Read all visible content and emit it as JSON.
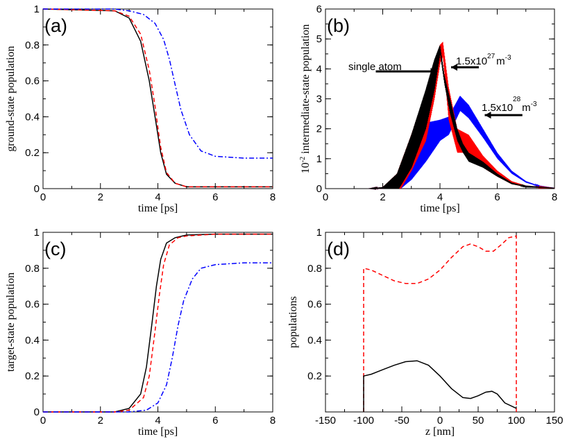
{
  "figure": {
    "panel_labels": [
      "(a)",
      "(b)",
      "(c)",
      "(d)"
    ]
  },
  "chart_data": [
    {
      "panel": "(a)",
      "type": "line",
      "xlabel": "time [ps]",
      "ylabel": "ground-state population",
      "xlim": [
        0,
        8
      ],
      "ylim": [
        0,
        1
      ],
      "xticks": [
        "0",
        "2",
        "4",
        "6",
        "8"
      ],
      "yticks": [
        "0",
        "0.2",
        "0.4",
        "0.6",
        "0.8",
        "1"
      ],
      "grid": false,
      "series": [
        {
          "color": "#000000",
          "dash": "solid",
          "x": [
            0,
            2.5,
            3.0,
            3.4,
            3.7,
            3.9,
            4.0,
            4.1,
            4.3,
            4.6,
            5.0,
            6.0,
            8.0
          ],
          "y": [
            1.0,
            0.99,
            0.95,
            0.82,
            0.6,
            0.4,
            0.3,
            0.2,
            0.08,
            0.03,
            0.01,
            0.01,
            0.01
          ]
        },
        {
          "color": "#ff0000",
          "dash": "dashed",
          "x": [
            0,
            2.5,
            3.0,
            3.4,
            3.7,
            3.9,
            4.0,
            4.1,
            4.3,
            4.6,
            5.0,
            6.0,
            8.0
          ],
          "y": [
            1.0,
            0.99,
            0.96,
            0.86,
            0.66,
            0.46,
            0.34,
            0.23,
            0.09,
            0.03,
            0.01,
            0.01,
            0.01
          ]
        },
        {
          "color": "#0000ff",
          "dash": "dashdot",
          "x": [
            0,
            2.5,
            3.0,
            3.5,
            3.9,
            4.2,
            4.4,
            4.6,
            4.8,
            5.1,
            5.5,
            6.0,
            7.0,
            8.0
          ],
          "y": [
            1.0,
            1.0,
            0.99,
            0.97,
            0.92,
            0.83,
            0.72,
            0.58,
            0.44,
            0.3,
            0.21,
            0.18,
            0.17,
            0.17
          ]
        }
      ]
    },
    {
      "panel": "(b)",
      "type": "line",
      "xlabel": "time [ps]",
      "ylabel": "10-2 intermediate-state population",
      "ylabel_parts": {
        "base": "10",
        "exp": "-2",
        "rest": "intermediate-state population"
      },
      "xlim": [
        0,
        8
      ],
      "ylim": [
        0,
        6
      ],
      "xticks": [
        "0",
        "2",
        "4",
        "6",
        "8"
      ],
      "yticks": [
        "0",
        "1",
        "2",
        "3",
        "4",
        "5",
        "6"
      ],
      "grid": false,
      "series": [
        {
          "color": "#0000ff",
          "x": [
            1.5,
            2.0,
            2.5,
            3.0,
            3.5,
            4.0,
            4.3,
            4.7,
            5.0,
            5.5,
            6.0,
            6.5,
            7.0,
            7.5,
            8.0
          ],
          "y": [
            0,
            0.05,
            0.4,
            1.3,
            2.2,
            2.3,
            2.4,
            3.1,
            2.8,
            2.0,
            1.2,
            0.6,
            0.25,
            0.08,
            0.02
          ],
          "band": [
            0.05,
            0.2,
            0.5,
            1.0,
            1.3,
            0.7,
            0.6,
            0.5,
            0.45,
            0.3,
            0.2,
            0.1,
            0.05,
            0.02,
            0.0
          ]
        },
        {
          "color": "#ff0000",
          "x": [
            1.5,
            2.0,
            2.5,
            3.0,
            3.5,
            3.8,
            4.0,
            4.1,
            4.3,
            4.6,
            5.0,
            5.5,
            6.0,
            6.5,
            7.0,
            8.0
          ],
          "y": [
            0,
            0.05,
            0.5,
            1.8,
            3.2,
            4.2,
            4.8,
            4.9,
            3.4,
            2.0,
            1.8,
            1.1,
            0.6,
            0.25,
            0.1,
            0.02
          ],
          "band": [
            0.05,
            0.2,
            0.7,
            1.2,
            1.6,
            1.2,
            0.6,
            0.5,
            1.1,
            0.8,
            0.6,
            0.4,
            0.2,
            0.1,
            0.05,
            0.0
          ]
        },
        {
          "color": "#000000",
          "x": [
            1.5,
            2.0,
            2.5,
            3.0,
            3.5,
            3.8,
            4.0,
            4.15,
            4.35,
            4.6,
            4.8,
            5.0,
            5.5,
            6.0,
            6.5,
            7.0,
            8.0
          ],
          "y": [
            0,
            0.05,
            0.5,
            1.8,
            3.3,
            4.3,
            4.8,
            3.8,
            3.0,
            2.0,
            1.5,
            1.2,
            0.9,
            0.5,
            0.2,
            0.08,
            0.02
          ],
          "band": [
            0.05,
            0.2,
            0.6,
            1.1,
            1.3,
            1.0,
            0.3,
            0.3,
            0.5,
            0.4,
            0.3,
            0.3,
            0.2,
            0.1,
            0.05,
            0.02,
            0.0
          ]
        }
      ],
      "annotations": [
        {
          "text": "single atom",
          "arrow_from": [
            2.0,
            3.9
          ],
          "arrow_to": [
            3.6,
            3.9
          ]
        },
        {
          "text": "1.5x10",
          "exp": "27",
          "unit": "m",
          "unit_exp": "-3",
          "arrow_from": [
            5.0,
            4.0
          ],
          "arrow_to": [
            4.15,
            4.0
          ]
        },
        {
          "text": "1.5x10",
          "exp": "28",
          "unit": "m",
          "unit_exp": "-3",
          "arrow_from": [
            7.0,
            2.45
          ],
          "arrow_to": [
            5.2,
            2.45
          ]
        }
      ]
    },
    {
      "panel": "(c)",
      "type": "line",
      "xlabel": "time [ps]",
      "ylabel": "target-state population",
      "xlim": [
        0,
        8
      ],
      "ylim": [
        0,
        1
      ],
      "xticks": [
        "0",
        "2",
        "4",
        "6",
        "8"
      ],
      "yticks": [
        "0",
        "0.2",
        "0.4",
        "0.6",
        "0.8",
        "1"
      ],
      "grid": false,
      "series": [
        {
          "color": "#000000",
          "dash": "solid",
          "x": [
            0,
            2.5,
            3.0,
            3.4,
            3.6,
            3.8,
            3.95,
            4.1,
            4.3,
            4.6,
            5.0,
            6.0,
            8.0
          ],
          "y": [
            0,
            0.0,
            0.02,
            0.1,
            0.25,
            0.5,
            0.7,
            0.85,
            0.94,
            0.97,
            0.985,
            0.99,
            0.99
          ]
        },
        {
          "color": "#ff0000",
          "dash": "dashed",
          "x": [
            0,
            2.5,
            3.0,
            3.5,
            3.7,
            3.9,
            4.05,
            4.2,
            4.4,
            4.7,
            5.0,
            6.0,
            8.0
          ],
          "y": [
            0,
            0.0,
            0.01,
            0.08,
            0.2,
            0.45,
            0.65,
            0.82,
            0.93,
            0.97,
            0.98,
            0.99,
            0.99
          ]
        },
        {
          "color": "#0000ff",
          "dash": "dashdot",
          "x": [
            0,
            3.0,
            3.6,
            4.0,
            4.3,
            4.5,
            4.7,
            4.9,
            5.2,
            5.5,
            6.0,
            7.0,
            8.0
          ],
          "y": [
            0,
            0.0,
            0.01,
            0.05,
            0.15,
            0.3,
            0.48,
            0.62,
            0.74,
            0.8,
            0.82,
            0.83,
            0.83
          ]
        }
      ]
    },
    {
      "panel": "(d)",
      "type": "line",
      "xlabel": "z [nm]",
      "ylabel": "populations",
      "xlim": [
        -150,
        150
      ],
      "ylim": [
        0,
        1
      ],
      "xticks": [
        "-150",
        "-100",
        "-50",
        "0",
        "50",
        "100",
        "150"
      ],
      "yticks": [
        "0.2",
        "0.4",
        "0.6",
        "0.8",
        "1"
      ],
      "grid": false,
      "series": [
        {
          "color": "#ff0000",
          "dash": "dashed",
          "x": [
            -100,
            -100,
            -90,
            -75,
            -60,
            -45,
            -30,
            -15,
            0,
            15,
            30,
            40,
            50,
            60,
            70,
            80,
            90,
            100,
            100
          ],
          "y": [
            0.0,
            0.8,
            0.79,
            0.76,
            0.73,
            0.715,
            0.715,
            0.74,
            0.79,
            0.86,
            0.92,
            0.935,
            0.92,
            0.895,
            0.895,
            0.93,
            0.97,
            0.98,
            0.0
          ]
        },
        {
          "color": "#000000",
          "dash": "solid",
          "x": [
            -100,
            -100,
            -90,
            -75,
            -60,
            -45,
            -30,
            -15,
            0,
            15,
            30,
            40,
            50,
            60,
            68,
            75,
            85,
            100
          ],
          "y": [
            0.0,
            0.2,
            0.21,
            0.235,
            0.26,
            0.28,
            0.285,
            0.26,
            0.2,
            0.13,
            0.08,
            0.075,
            0.09,
            0.11,
            0.115,
            0.1,
            0.05,
            0.02
          ]
        }
      ]
    }
  ]
}
